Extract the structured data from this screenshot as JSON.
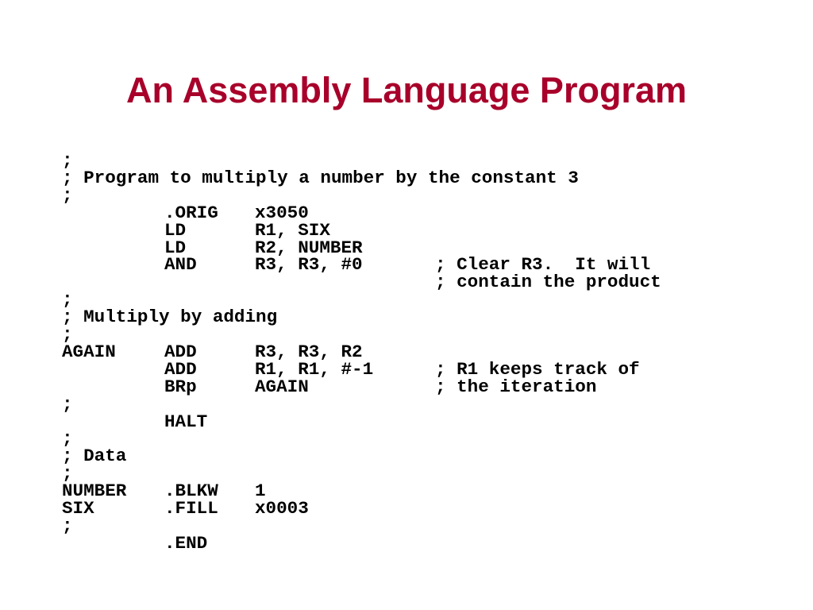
{
  "slide": {
    "title": "An Assembly Language Program",
    "title_color": "#A8002A",
    "lines": [
      {
        "full": ";"
      },
      {
        "full": "; Program to multiply a number by the constant 3"
      },
      {
        "full": ";"
      },
      {
        "label": "",
        "op": ".ORIG",
        "args": "x3050",
        "comment": ""
      },
      {
        "label": "",
        "op": "LD",
        "args": "R1, SIX",
        "comment": ""
      },
      {
        "label": "",
        "op": "LD",
        "args": "R2, NUMBER",
        "comment": ""
      },
      {
        "label": "",
        "op": "AND",
        "args": "R3, R3, #0",
        "comment": "; Clear R3.  It will"
      },
      {
        "label": "",
        "op": "",
        "args": "",
        "comment": "; contain the product"
      },
      {
        "full": ";"
      },
      {
        "full": "; Multiply by adding"
      },
      {
        "full": ";"
      },
      {
        "label": "AGAIN",
        "op": "ADD",
        "args": "R3, R3, R2",
        "comment": ""
      },
      {
        "label": "",
        "op": "ADD",
        "args": "R1, R1, #-1",
        "comment": "; R1 keeps track of"
      },
      {
        "label": "",
        "op": "BRp",
        "args": "AGAIN",
        "comment": "; the iteration"
      },
      {
        "full": ";"
      },
      {
        "label": "",
        "op": "HALT",
        "args": "",
        "comment": ""
      },
      {
        "full": ";"
      },
      {
        "full": "; Data"
      },
      {
        "full": ";"
      },
      {
        "label": "NUMBER",
        "op": ".BLKW",
        "args": "1",
        "comment": ""
      },
      {
        "label": "SIX",
        "op": ".FILL",
        "args": "x0003",
        "comment": ""
      },
      {
        "full": ";"
      },
      {
        "label": "",
        "op": ".END",
        "args": "",
        "comment": ""
      }
    ]
  }
}
